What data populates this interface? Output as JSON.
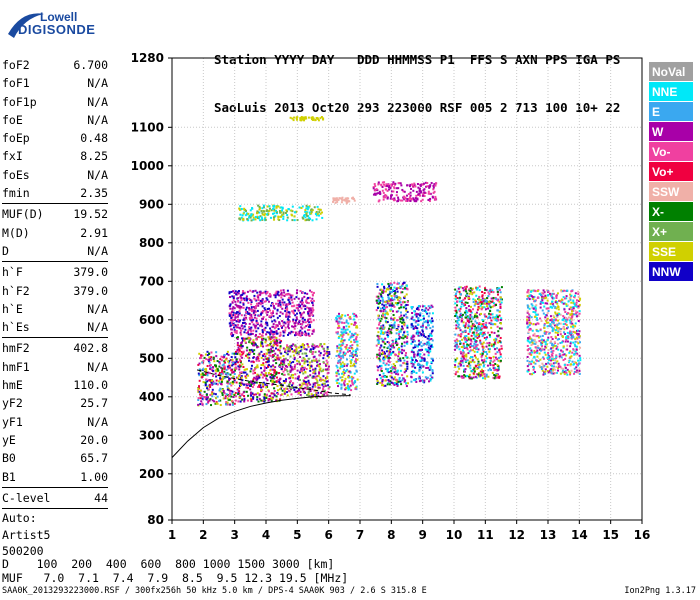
{
  "logo": {
    "line1": "Lowell",
    "line2": "DIGISONDE"
  },
  "header": {
    "line1": "Station YYYY DAY   DDD HHMMSS P1  FFS S AXN PPS IGA PS",
    "line2": "SaoLuis 2013 Oct20 293 223000 RSF 005 2 713 100 10+ 22"
  },
  "params": [
    {
      "k": "foF2",
      "v": "6.700"
    },
    {
      "k": "foF1",
      "v": "N/A"
    },
    {
      "k": "foF1p",
      "v": "N/A"
    },
    {
      "k": "foE",
      "v": "N/A"
    },
    {
      "k": "foEp",
      "v": "0.48"
    },
    {
      "k": "fxI",
      "v": "8.25"
    },
    {
      "k": "foEs",
      "v": "N/A"
    },
    {
      "k": "fmin",
      "v": "2.35"
    },
    {
      "sep": true
    },
    {
      "k": "MUF(D)",
      "v": "19.52"
    },
    {
      "k": "M(D)",
      "v": "2.91"
    },
    {
      "k": "D",
      "v": "N/A"
    },
    {
      "sep": true
    },
    {
      "k": "h`F",
      "v": "379.0"
    },
    {
      "k": "h`F2",
      "v": "379.0"
    },
    {
      "k": "h`E",
      "v": "N/A"
    },
    {
      "k": "h`Es",
      "v": "N/A"
    },
    {
      "sep": true
    },
    {
      "k": "hmF2",
      "v": "402.8"
    },
    {
      "k": "hmF1",
      "v": "N/A"
    },
    {
      "k": "hmE",
      "v": "110.0"
    },
    {
      "k": "yF2",
      "v": "25.7"
    },
    {
      "k": "yF1",
      "v": "N/A"
    },
    {
      "k": "yE",
      "v": "20.0"
    },
    {
      "k": "B0",
      "v": "65.7"
    },
    {
      "k": "B1",
      "v": "1.00"
    },
    {
      "sep": true
    },
    {
      "k": "C-level",
      "v": "44"
    },
    {
      "sep": true
    }
  ],
  "auto": [
    "Auto:",
    "Artist5",
    "500200"
  ],
  "footer": {
    "d_line": "D    100  200  400  600  800 1000 1500 3000 [km]",
    "muf_line": "MUF   7.0  7.1  7.4  7.9  8.5  9.5 12.3 19.5 [MHz]",
    "source": "SAA0K_2013293223000.RSF / 300fx256h 50 kHz 5.0 km / DPS-4 SAA0K 903 / 2.6 S 315.8 E",
    "version": "Ion2Png 1.3.17"
  },
  "legend": [
    {
      "label": "NoVal",
      "color": "#a0a0a0"
    },
    {
      "label": "NNE",
      "color": "#00e8f8"
    },
    {
      "label": "E",
      "color": "#3aa8f0"
    },
    {
      "label": "W",
      "color": "#a800a8"
    },
    {
      "label": "Vo-",
      "color": "#f040a0"
    },
    {
      "label": "Vo+",
      "color": "#f00040"
    },
    {
      "label": "SSW",
      "color": "#f0b0a8"
    },
    {
      "label": "X-",
      "color": "#008000"
    },
    {
      "label": "X+",
      "color": "#70b050"
    },
    {
      "label": "SSE",
      "color": "#d0d000"
    },
    {
      "label": "NNW",
      "color": "#1000c8"
    }
  ],
  "chart_data": {
    "type": "scatter",
    "xlabel": "",
    "ylabel": "",
    "x_ticks": [
      1,
      2,
      3,
      4,
      5,
      6,
      7,
      8,
      9,
      10,
      11,
      12,
      13,
      14,
      15,
      16
    ],
    "xlim": [
      1,
      16
    ],
    "y_ticks": [
      80,
      200,
      300,
      400,
      500,
      600,
      700,
      800,
      900,
      1000,
      1100,
      1280
    ],
    "ylim": [
      80,
      1280
    ],
    "grid": true,
    "clusters": [
      {
        "x": [
          1.8,
          3.0
        ],
        "y": [
          380,
          520
        ],
        "colors": [
          "W",
          "Vo-",
          "Vo+",
          "SSE",
          "X-",
          "NNW",
          "E"
        ]
      },
      {
        "x": [
          3.0,
          4.5
        ],
        "y": [
          390,
          560
        ],
        "colors": [
          "W",
          "Vo-",
          "Vo+",
          "SSE",
          "X-",
          "NNW"
        ]
      },
      {
        "x": [
          4.5,
          6.0
        ],
        "y": [
          400,
          540
        ],
        "colors": [
          "SSE",
          "X+",
          "Vo-",
          "NNW",
          "W"
        ]
      },
      {
        "x": [
          2.8,
          5.5
        ],
        "y": [
          560,
          680
        ],
        "colors": [
          "W",
          "NNW",
          "Vo-"
        ]
      },
      {
        "x": [
          6.2,
          6.9
        ],
        "y": [
          420,
          620
        ],
        "colors": [
          "NNE",
          "E",
          "W",
          "Vo-",
          "SSE"
        ]
      },
      {
        "x": [
          7.5,
          8.5
        ],
        "y": [
          430,
          700
        ],
        "colors": [
          "NNE",
          "E",
          "W",
          "Vo-",
          "NNW",
          "X-",
          "SSE"
        ]
      },
      {
        "x": [
          8.6,
          9.3
        ],
        "y": [
          440,
          640
        ],
        "colors": [
          "NNE",
          "E",
          "W",
          "NNW"
        ]
      },
      {
        "x": [
          10.0,
          11.5
        ],
        "y": [
          450,
          690
        ],
        "colors": [
          "NNE",
          "E",
          "W",
          "Vo-",
          "Vo+",
          "X-",
          "SSE"
        ]
      },
      {
        "x": [
          12.3,
          14.0
        ],
        "y": [
          460,
          680
        ],
        "colors": [
          "W",
          "Vo-",
          "SSW",
          "E",
          "NNE",
          "SSE"
        ]
      },
      {
        "x": [
          7.4,
          9.4
        ],
        "y": [
          910,
          960
        ],
        "colors": [
          "W",
          "Vo-"
        ]
      },
      {
        "x": [
          3.1,
          5.8
        ],
        "y": [
          860,
          900
        ],
        "colors": [
          "SSE",
          "NNE",
          "X+"
        ]
      },
      {
        "x": [
          6.1,
          6.8
        ],
        "y": [
          905,
          920
        ],
        "colors": [
          "SSW"
        ]
      },
      {
        "x": [
          4.7,
          5.8
        ],
        "y": [
          1120,
          1130
        ],
        "colors": [
          "SSE"
        ]
      }
    ],
    "traces": [
      {
        "name": "F2 virtual height",
        "x": [
          1.0,
          1.5,
          2.0,
          2.5,
          3.0,
          3.5,
          4.0,
          4.5,
          5.0,
          5.5,
          6.0,
          6.7
        ],
        "y": [
          242,
          285,
          320,
          345,
          362,
          375,
          384,
          391,
          396,
          400,
          402,
          403
        ]
      },
      {
        "name": "profile",
        "x": [
          1.8,
          2.5,
          3.5,
          4.5,
          5.5,
          6.1,
          6.7
        ],
        "y": [
          470,
          455,
          440,
          430,
          418,
          410,
          405
        ]
      }
    ]
  }
}
